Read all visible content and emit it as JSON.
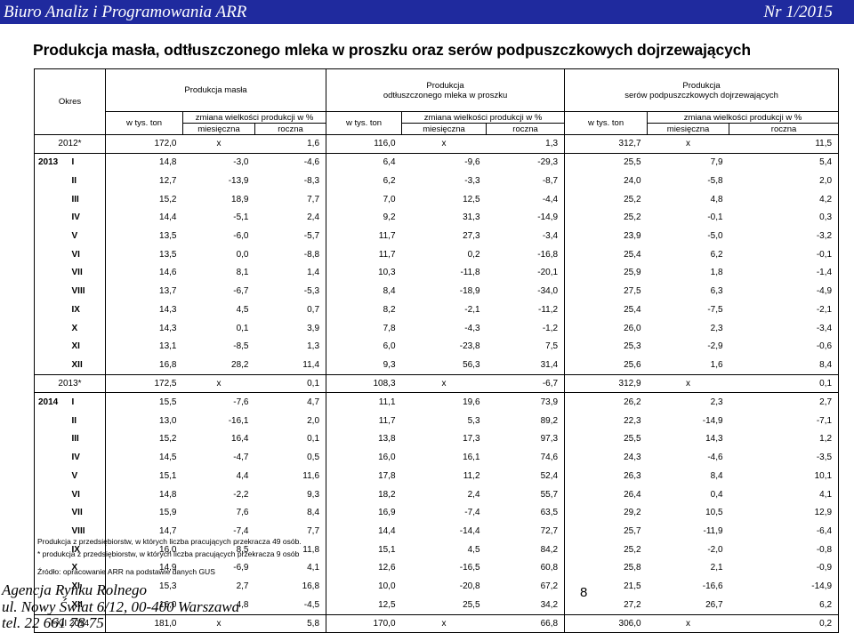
{
  "header": {
    "left": "Biuro Analiz i Programowania ARR",
    "right": "Nr 1/2015",
    "bar_color": "#1f2a9e"
  },
  "title": "Produkcja masła, odtłuszczonego mleka w proszku oraz serów podpuszczkowych dojrzewających",
  "table_header": {
    "okres": "Okres",
    "groups": [
      "Produkcja masła",
      "Produkcja odtłuszczonego mleka w proszku",
      "Produkcja serów podpuszczkowych dojrzewających"
    ],
    "group_line1": [
      "",
      "Produkcja",
      "Produkcja"
    ],
    "group_line2": [
      "Produkcja masła",
      "odtłuszczonego mleka w proszku",
      "serów podpuszczkowych dojrzewających"
    ],
    "w_tys_ton": "w tys. ton",
    "zmiana": "zmiana wielkości produkcji w %",
    "miesieczna": "miesięczna",
    "roczna": "roczna"
  },
  "rows": [
    {
      "year": "2012*",
      "month": "",
      "annual": true,
      "v": [
        "172,0",
        "x",
        "1,6",
        "116,0",
        "x",
        "1,3",
        "312,7",
        "x",
        "11,5"
      ]
    },
    {
      "year": "2013",
      "month": "I",
      "v": [
        "14,8",
        "-3,0",
        "-4,6",
        "6,4",
        "-9,6",
        "-29,3",
        "25,5",
        "7,9",
        "5,4"
      ]
    },
    {
      "year": "",
      "month": "II",
      "v": [
        "12,7",
        "-13,9",
        "-8,3",
        "6,2",
        "-3,3",
        "-8,7",
        "24,0",
        "-5,8",
        "2,0"
      ]
    },
    {
      "year": "",
      "month": "III",
      "v": [
        "15,2",
        "18,9",
        "7,7",
        "7,0",
        "12,5",
        "-4,4",
        "25,2",
        "4,8",
        "4,2"
      ]
    },
    {
      "year": "",
      "month": "IV",
      "v": [
        "14,4",
        "-5,1",
        "2,4",
        "9,2",
        "31,3",
        "-14,9",
        "25,2",
        "-0,1",
        "0,3"
      ]
    },
    {
      "year": "",
      "month": "V",
      "v": [
        "13,5",
        "-6,0",
        "-5,7",
        "11,7",
        "27,3",
        "-3,4",
        "23,9",
        "-5,0",
        "-3,2"
      ]
    },
    {
      "year": "",
      "month": "VI",
      "v": [
        "13,5",
        "0,0",
        "-8,8",
        "11,7",
        "0,2",
        "-16,8",
        "25,4",
        "6,2",
        "-0,1"
      ]
    },
    {
      "year": "",
      "month": "VII",
      "v": [
        "14,6",
        "8,1",
        "1,4",
        "10,3",
        "-11,8",
        "-20,1",
        "25,9",
        "1,8",
        "-1,4"
      ]
    },
    {
      "year": "",
      "month": "VIII",
      "v": [
        "13,7",
        "-6,7",
        "-5,3",
        "8,4",
        "-18,9",
        "-34,0",
        "27,5",
        "6,3",
        "-4,9"
      ]
    },
    {
      "year": "",
      "month": "IX",
      "v": [
        "14,3",
        "4,5",
        "0,7",
        "8,2",
        "-2,1",
        "-11,2",
        "25,4",
        "-7,5",
        "-2,1"
      ]
    },
    {
      "year": "",
      "month": "X",
      "v": [
        "14,3",
        "0,1",
        "3,9",
        "7,8",
        "-4,3",
        "-1,2",
        "26,0",
        "2,3",
        "-3,4"
      ]
    },
    {
      "year": "",
      "month": "XI",
      "v": [
        "13,1",
        "-8,5",
        "1,3",
        "6,0",
        "-23,8",
        "7,5",
        "25,3",
        "-2,9",
        "-0,6"
      ]
    },
    {
      "year": "",
      "month": "XII",
      "v": [
        "16,8",
        "28,2",
        "11,4",
        "9,3",
        "56,3",
        "31,4",
        "25,6",
        "1,6",
        "8,4"
      ]
    },
    {
      "year": "2013*",
      "month": "",
      "annual": true,
      "v": [
        "172,5",
        "x",
        "0,1",
        "108,3",
        "x",
        "-6,7",
        "312,9",
        "x",
        "0,1"
      ]
    },
    {
      "year": "2014",
      "month": "I",
      "v": [
        "15,5",
        "-7,6",
        "4,7",
        "11,1",
        "19,6",
        "73,9",
        "26,2",
        "2,3",
        "2,7"
      ]
    },
    {
      "year": "",
      "month": "II",
      "v": [
        "13,0",
        "-16,1",
        "2,0",
        "11,7",
        "5,3",
        "89,2",
        "22,3",
        "-14,9",
        "-7,1"
      ]
    },
    {
      "year": "",
      "month": "III",
      "v": [
        "15,2",
        "16,4",
        "0,1",
        "13,8",
        "17,3",
        "97,3",
        "25,5",
        "14,3",
        "1,2"
      ]
    },
    {
      "year": "",
      "month": "IV",
      "v": [
        "14,5",
        "-4,7",
        "0,5",
        "16,0",
        "16,1",
        "74,6",
        "24,3",
        "-4,6",
        "-3,5"
      ]
    },
    {
      "year": "",
      "month": "V",
      "v": [
        "15,1",
        "4,4",
        "11,6",
        "17,8",
        "11,2",
        "52,4",
        "26,3",
        "8,4",
        "10,1"
      ]
    },
    {
      "year": "",
      "month": "VI",
      "v": [
        "14,8",
        "-2,2",
        "9,3",
        "18,2",
        "2,4",
        "55,7",
        "26,4",
        "0,4",
        "4,1"
      ]
    },
    {
      "year": "",
      "month": "VII",
      "v": [
        "15,9",
        "7,6",
        "8,4",
        "16,9",
        "-7,4",
        "63,5",
        "29,2",
        "10,5",
        "12,9"
      ]
    },
    {
      "year": "",
      "month": "VIII",
      "v": [
        "14,7",
        "-7,4",
        "7,7",
        "14,4",
        "-14,4",
        "72,7",
        "25,7",
        "-11,9",
        "-6,4"
      ]
    },
    {
      "year": "",
      "month": "IX",
      "v": [
        "16,0",
        "8,5",
        "11,8",
        "15,1",
        "4,5",
        "84,2",
        "25,2",
        "-2,0",
        "-0,8"
      ]
    },
    {
      "year": "",
      "month": "X",
      "v": [
        "14,9",
        "-6,9",
        "4,1",
        "12,6",
        "-16,5",
        "60,8",
        "25,8",
        "2,1",
        "-0,9"
      ]
    },
    {
      "year": "",
      "month": "XI",
      "v": [
        "15,3",
        "2,7",
        "16,8",
        "10,0",
        "-20,8",
        "67,2",
        "21,5",
        "-16,6",
        "-14,9"
      ]
    },
    {
      "year": "",
      "month": "XII",
      "v": [
        "16,0",
        "4,8",
        "-4,5",
        "12,5",
        "25,5",
        "34,2",
        "27,2",
        "26,7",
        "6,2"
      ]
    },
    {
      "year": "I-XII 2014",
      "month": "",
      "annual": true,
      "last": true,
      "v": [
        "181,0",
        "x",
        "5,8",
        "170,0",
        "x",
        "66,8",
        "306,0",
        "x",
        "0,2"
      ]
    }
  ],
  "notes": {
    "note1": "Produkcja z przedsiębiorstw, w których liczba pracujących przekracza 49 osób.",
    "note2": "* produkcja z przedsiębiorstw, w których liczba pracujących przekracza 9 osób",
    "source": "Źródło: opracowanie ARR na podstawie danych GUS"
  },
  "footer": {
    "line1": "Agencja Rynku Rolnego",
    "line2": "ul. Nowy Świat 6/12, 00-400 Warszawa",
    "line3": "tel. 22 661 78 75",
    "page": "8"
  }
}
